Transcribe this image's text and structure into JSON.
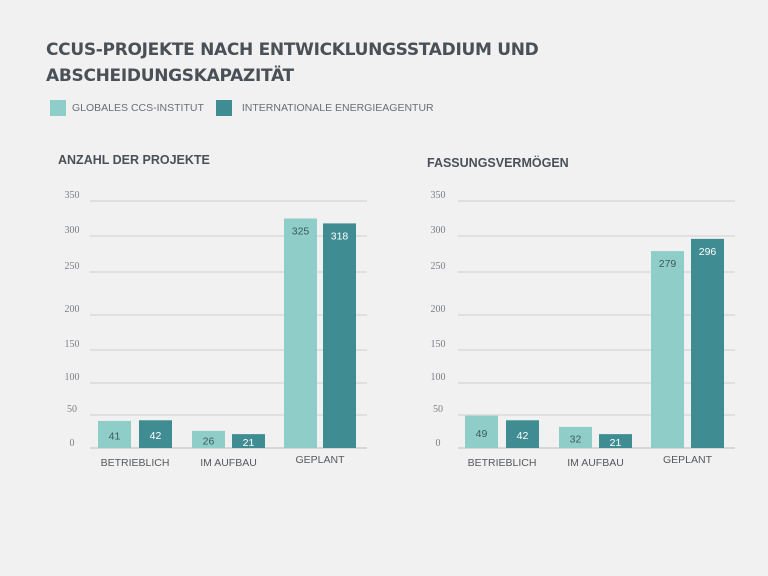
{
  "title": "CCUS-PROJEKTE NACH ENTWICKLUNGSSTADIUM UND ABSCHEIDUNGSKAPAZITÄT",
  "legend": [
    {
      "label": "GLOBALES CCS-INSTITUT",
      "color": "#8fcdc8"
    },
    {
      "label": "INTERNATIONALE ENERGIEAGENTUR",
      "color": "#3f8d92"
    }
  ],
  "chart_data": [
    {
      "type": "bar",
      "title": "ANZAHL DER PROJEKTE",
      "categories": [
        "BETRIEBLICH",
        "IM AUFBAU",
        "GEPLANT"
      ],
      "series": [
        {
          "name": "GLOBALES CCS-INSTITUT",
          "values": [
            41,
            26,
            325
          ]
        },
        {
          "name": "INTERNATIONALE ENERGIEAGENTUR",
          "values": [
            42,
            21,
            318
          ]
        }
      ],
      "yticks": [
        0,
        50,
        100,
        150,
        200,
        250,
        300,
        350
      ],
      "ylim": [
        0,
        350
      ],
      "grid": true,
      "xlabel": "",
      "ylabel": ""
    },
    {
      "type": "bar",
      "title": "FASSUNGSVERMÖGEN",
      "categories": [
        "BETRIEBLICH",
        "IM AUFBAU",
        "GEPLANT"
      ],
      "series": [
        {
          "name": "GLOBALES CCS-INSTITUT",
          "values": [
            49,
            32,
            279
          ]
        },
        {
          "name": "INTERNATIONALE ENERGIEAGENTUR",
          "values": [
            42,
            21,
            296
          ]
        }
      ],
      "yticks": [
        0,
        50,
        100,
        150,
        200,
        250,
        300,
        350
      ],
      "ylim": [
        0,
        350
      ],
      "grid": true,
      "xlabel": "",
      "ylabel": ""
    }
  ]
}
